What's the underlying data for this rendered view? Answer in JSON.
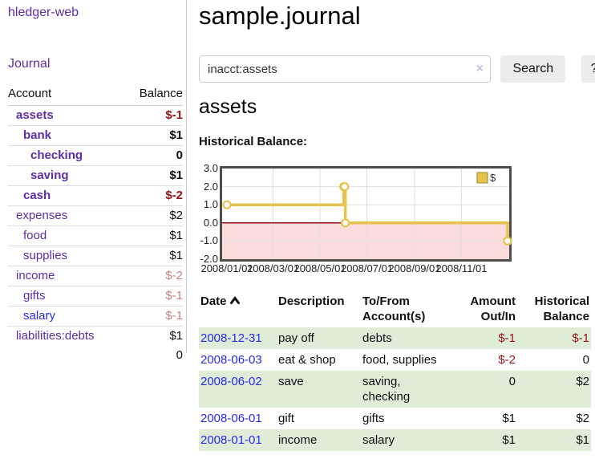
{
  "app": {
    "title": "hledger-web",
    "journal_link": "Journal"
  },
  "sidebar": {
    "header": {
      "account": "Account",
      "balance": "Balance"
    },
    "accounts": [
      {
        "name": "assets",
        "balance": "$-1",
        "indent": 0,
        "emph": true,
        "name_color": "purple",
        "balance_color": "red"
      },
      {
        "name": "bank",
        "balance": "$1",
        "indent": 1,
        "emph": true,
        "name_color": "purple",
        "balance_color": "black"
      },
      {
        "name": "checking",
        "balance": "0",
        "indent": 2,
        "emph": true,
        "name_color": "purple",
        "balance_color": "black"
      },
      {
        "name": "saving",
        "balance": "$1",
        "indent": 2,
        "emph": true,
        "name_color": "purple",
        "balance_color": "black"
      },
      {
        "name": "cash",
        "balance": "$-2",
        "indent": 1,
        "emph": true,
        "name_color": "purple",
        "balance_color": "red"
      },
      {
        "name": "expenses",
        "balance": "$2",
        "indent": 0,
        "emph": false,
        "name_color": "purple",
        "balance_color": "black"
      },
      {
        "name": "food",
        "balance": "$1",
        "indent": 1,
        "emph": false,
        "name_color": "purple",
        "balance_color": "black"
      },
      {
        "name": "supplies",
        "balance": "$1",
        "indent": 1,
        "emph": false,
        "name_color": "purple",
        "balance_color": "black"
      },
      {
        "name": "income",
        "balance": "$-2",
        "indent": 0,
        "emph": false,
        "name_color": "purple",
        "balance_color": "rose"
      },
      {
        "name": "gifts",
        "balance": "$-1",
        "indent": 1,
        "emph": false,
        "name_color": "purple",
        "balance_color": "rose"
      },
      {
        "name": "salary",
        "balance": "$-1",
        "indent": 1,
        "emph": false,
        "name_color": "blue",
        "balance_color": "rose"
      },
      {
        "name": "liabilities:debts",
        "balance": "$1",
        "indent": 0,
        "emph": false,
        "name_color": "purple",
        "balance_color": "black"
      }
    ],
    "total": "0"
  },
  "main": {
    "title": "sample.journal",
    "search": {
      "value": "inacct:assets",
      "clear_icon": "×",
      "button_label": "Search",
      "help_label": "?"
    },
    "account_heading": "assets",
    "chart_title": "Historical Balance:"
  },
  "chart_data": {
    "type": "line",
    "title": "Historical Balance",
    "step": "after",
    "legend": [
      {
        "label": "$",
        "color": "#e6c34c"
      }
    ],
    "legend_position": "top-right",
    "x_domain": [
      "2008-01-01",
      "2008-12-31"
    ],
    "ylim": [
      -2,
      3
    ],
    "grid": true,
    "y_ticks": [
      {
        "value": 3,
        "label": "3.0"
      },
      {
        "value": 2,
        "label": "2.0"
      },
      {
        "value": 1,
        "label": "1.0"
      },
      {
        "value": 0,
        "label": "0.0"
      },
      {
        "value": -1,
        "label": "-1.0"
      },
      {
        "value": -2,
        "label": "-2.0"
      }
    ],
    "x_ticks": [
      {
        "date": "2008-01-01",
        "label": "2008/01/01"
      },
      {
        "date": "2008-03-01",
        "label": "2008/03/01"
      },
      {
        "date": "2008-05-01",
        "label": "2008/05/01"
      },
      {
        "date": "2008-07-01",
        "label": "2008/07/01"
      },
      {
        "date": "2008-09-01",
        "label": "2008/09/01"
      },
      {
        "date": "2008-11-01",
        "label": "2008/11/01"
      }
    ],
    "points": [
      {
        "x": "2008-01-01",
        "y": 1
      },
      {
        "x": "2008-06-01",
        "y": 2
      },
      {
        "x": "2008-06-02",
        "y": 2
      },
      {
        "x": "2008-06-03",
        "y": 0
      },
      {
        "x": "2008-12-31",
        "y": -1
      }
    ],
    "line_color": "#e6c34c",
    "negative_zone_color": "#fbdcdc",
    "zero_line_color": "#8b0000",
    "grid_color": "#e0e0e0"
  },
  "register": {
    "headers": {
      "date": "Date",
      "description": "Description",
      "tofrom": "To/From Account(s)",
      "amount": "Amount Out/In",
      "balance": "Historical Balance"
    },
    "sort_icon": "chevron-up",
    "rows": [
      {
        "date": "2008-12-31",
        "description": "pay off",
        "accounts": "debts",
        "amount": "$-1",
        "balance": "$-1",
        "amount_color": "red",
        "balance_color": "red"
      },
      {
        "date": "2008-06-03",
        "description": "eat & shop",
        "accounts": "food, supplies",
        "amount": "$-2",
        "balance": "0",
        "amount_color": "red",
        "balance_color": "black"
      },
      {
        "date": "2008-06-02",
        "description": "save",
        "accounts": "saving, checking",
        "amount": "0",
        "balance": "$2",
        "amount_color": "black",
        "balance_color": "black"
      },
      {
        "date": "2008-06-01",
        "description": "gift",
        "accounts": "gifts",
        "amount": "$1",
        "balance": "$2",
        "amount_color": "black",
        "balance_color": "black"
      },
      {
        "date": "2008-01-01",
        "description": "income",
        "accounts": "salary",
        "amount": "$1",
        "balance": "$1",
        "amount_color": "black",
        "balance_color": "black"
      }
    ]
  },
  "colors": {
    "link_purple": "#5e2da6",
    "link_blue": "#2a2aee",
    "negative_strong": "#971414",
    "negative_muted": "#c98080",
    "row_stripe_green": "#dfecd8",
    "chart_line_gold": "#e6c34c",
    "chart_negative_pink": "#fbdcdc",
    "chart_zero_red": "#8b0000",
    "button_gray": "#ececec"
  }
}
